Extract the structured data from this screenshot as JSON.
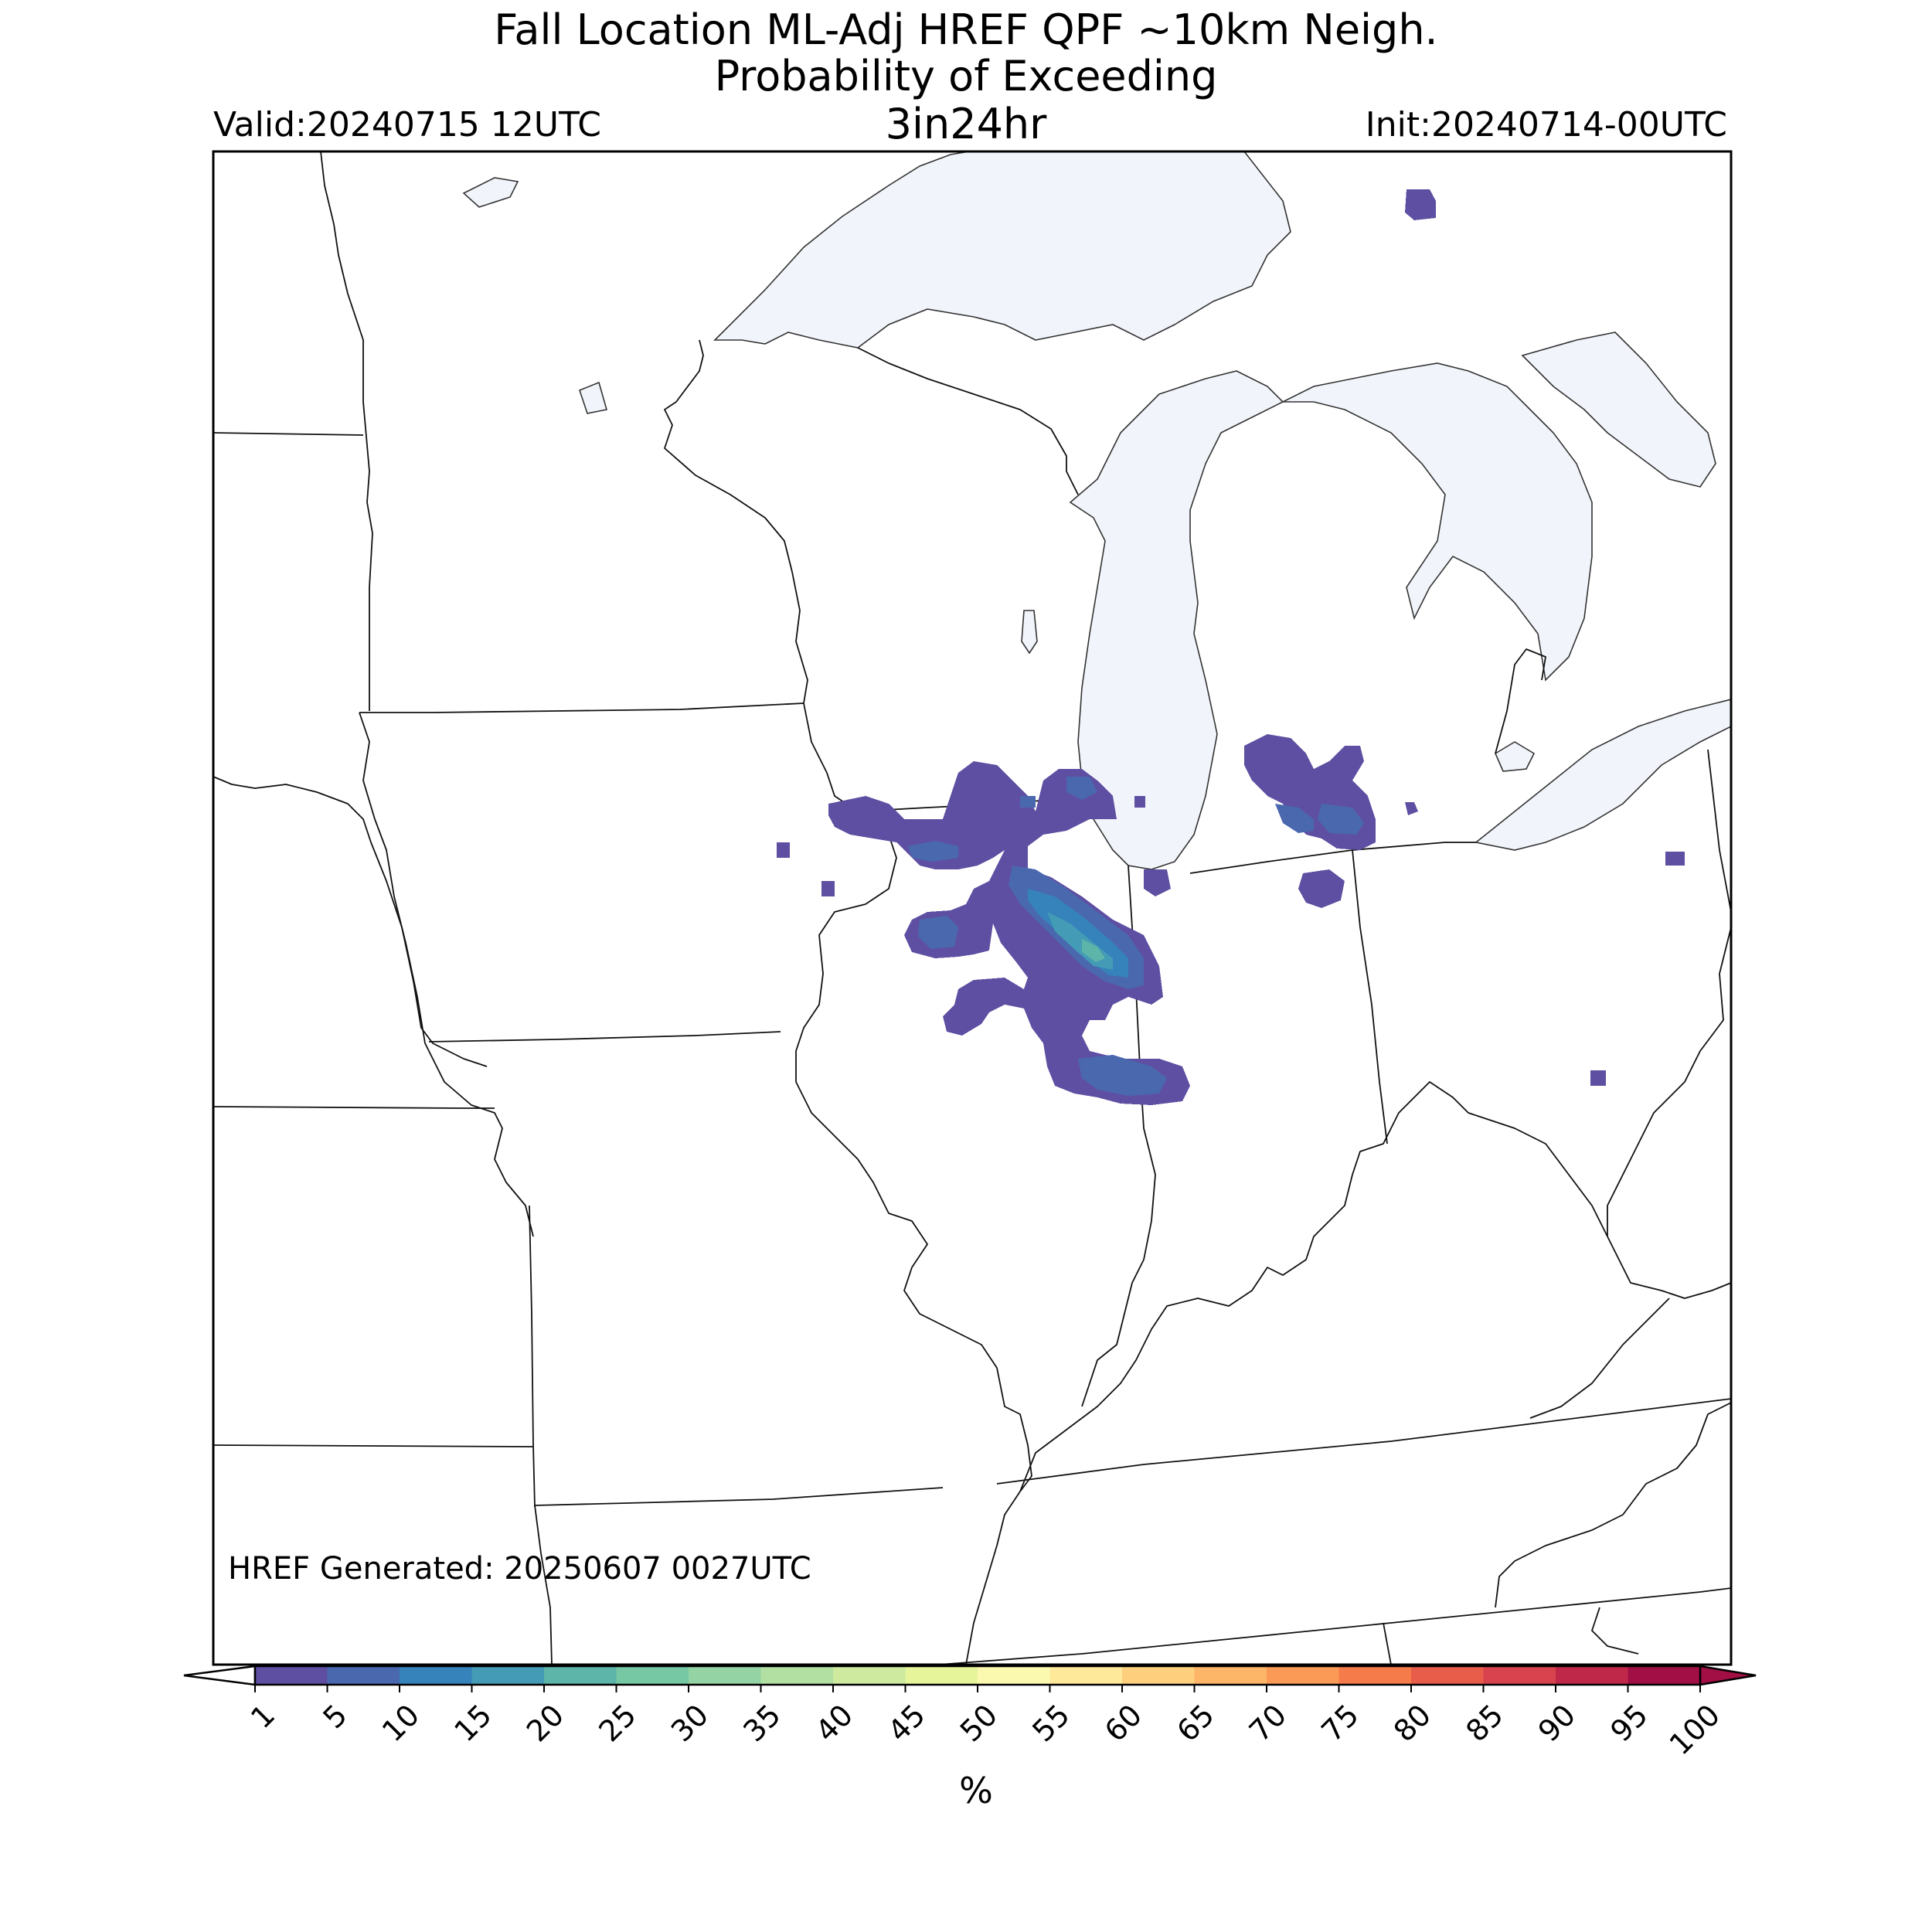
{
  "header": {
    "title_line1": "Fall Location ML-Adj HREF QPF ~10km Neigh.",
    "title_line2": "Probability of Exceeding",
    "threshold": "3in24hr",
    "valid": "Valid:20240715 12UTC",
    "init": "Init:20240714-00UTC"
  },
  "footer": {
    "generated": "HREF Generated: 20250607 0027UTC"
  },
  "colorbar": {
    "ticks": [
      "1",
      "5",
      "10",
      "15",
      "20",
      "25",
      "30",
      "35",
      "40",
      "45",
      "50",
      "55",
      "60",
      "65",
      "70",
      "75",
      "80",
      "85",
      "90",
      "95",
      "100"
    ],
    "colors": [
      "#5e4fa2",
      "#4a68ae",
      "#3682ba",
      "#439bb5",
      "#5db4a9",
      "#76c8a4",
      "#94d4a4",
      "#b2e0a2",
      "#cdea9f",
      "#e7f59a",
      "#fbf8b0",
      "#fee89a",
      "#fed07e",
      "#fdb567",
      "#fb9a56",
      "#f67b4a",
      "#e85d4a",
      "#d8434e",
      "#c0284a",
      "#a20f44"
    ],
    "units": "%"
  },
  "map": {
    "lake_color": "#f1f5fb",
    "state_line_color": "#000000",
    "probability_max_percent": 25
  }
}
